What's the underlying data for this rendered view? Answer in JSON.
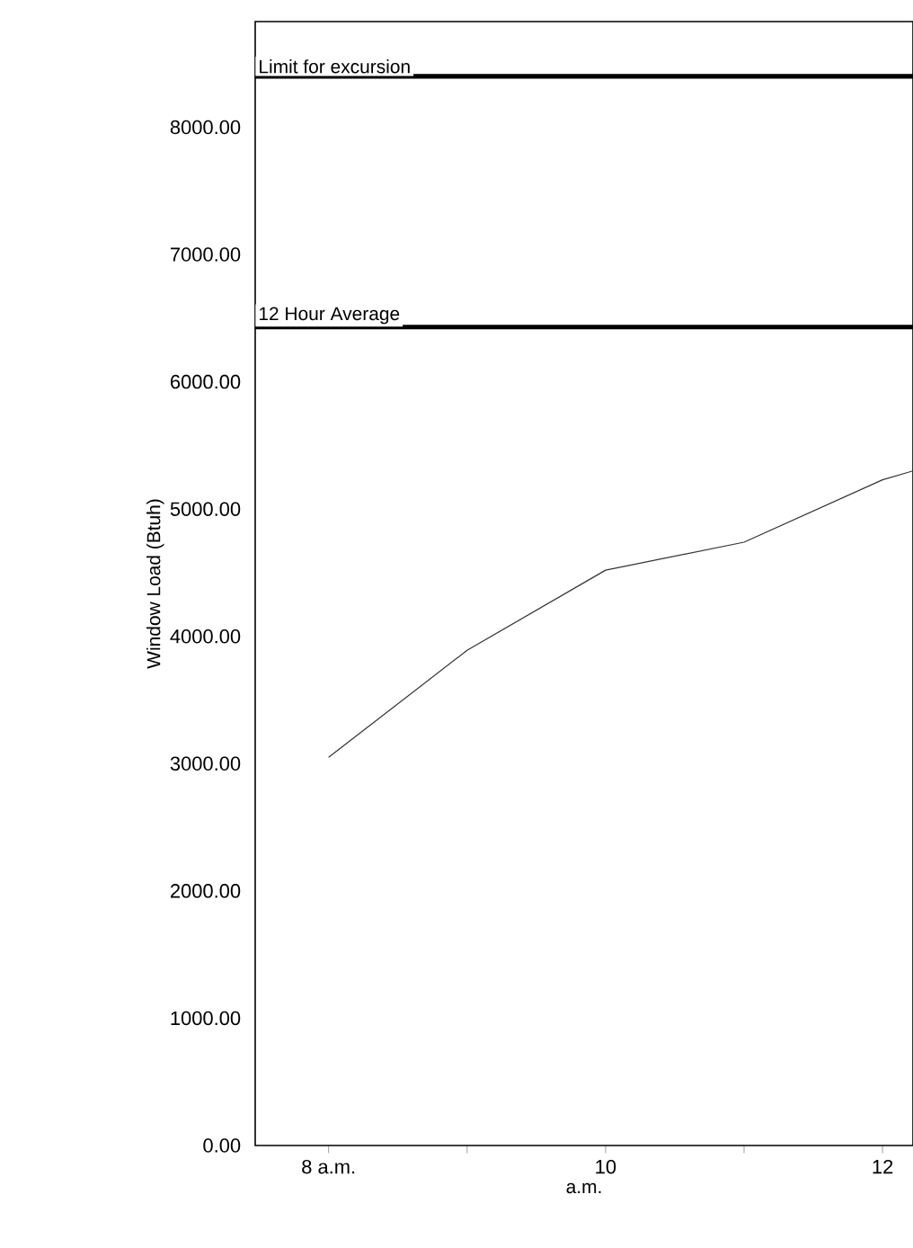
{
  "chart_data": {
    "type": "line",
    "xlabel": "a.m.",
    "ylabel": "Window Load (Btuh)",
    "x": [
      8,
      9,
      10,
      11,
      12,
      12.22
    ],
    "series": [
      {
        "color": "#333333",
        "values": [
          3050,
          3890,
          4520,
          4740,
          5230,
          5300
        ]
      }
    ],
    "xlim": [
      7.47,
      12.22
    ],
    "xticks": [
      {
        "value": 8,
        "label": "8 a.m."
      },
      {
        "value": 9,
        "label": null
      },
      {
        "value": 10,
        "label": "10"
      },
      {
        "value": 11,
        "label": null
      },
      {
        "value": 12,
        "label": "12"
      }
    ],
    "ylim": [
      0,
      8830
    ],
    "yticks": [
      {
        "value": 0,
        "label": "0.00"
      },
      {
        "value": 1000,
        "label": "1000.00"
      },
      {
        "value": 2000,
        "label": "2000.00"
      },
      {
        "value": 3000,
        "label": "3000.00"
      },
      {
        "value": 4000,
        "label": "4000.00"
      },
      {
        "value": 5000,
        "label": "5000.00"
      },
      {
        "value": 6000,
        "label": "6000.00"
      },
      {
        "value": 7000,
        "label": "7000.00"
      },
      {
        "value": 8000,
        "label": "8000.00"
      }
    ],
    "ref_lines": [
      {
        "axis": "y",
        "value": 8400,
        "label": "Limit for excursion",
        "color": "#000000"
      },
      {
        "axis": "y",
        "value": 6430,
        "label": "12 Hour Average",
        "color": "#000000"
      }
    ],
    "marker": "none",
    "line_style": "solid"
  }
}
